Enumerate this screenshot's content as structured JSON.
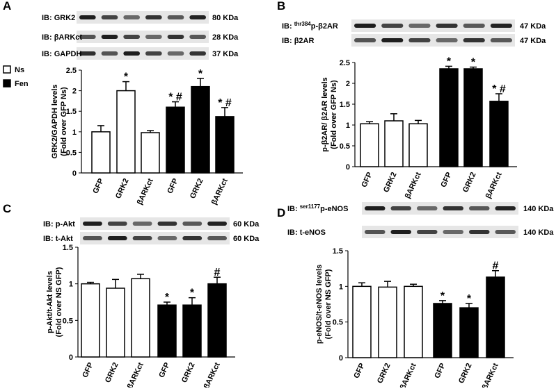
{
  "chart_data": [
    {
      "type": "bar",
      "panel": "A",
      "blots": [
        {
          "label": "IB: GRK2",
          "size": "80 KDa"
        },
        {
          "label": "IB: βARKct",
          "size": "28 KDa"
        },
        {
          "label": "IB: GAPDH",
          "size": "37 KDa"
        }
      ],
      "ylabel": [
        "GRK2/GAPDH levels",
        "(Fold over GFP Ns)"
      ],
      "categories": [
        "GFP",
        "GRK2",
        "βARKct",
        "GFP",
        "GRK2",
        "βARKct"
      ],
      "values": [
        1.0,
        2.0,
        0.98,
        1.6,
        2.1,
        1.37
      ],
      "errors": [
        0.15,
        0.22,
        0.05,
        0.13,
        0.2,
        0.22
      ],
      "annotations": [
        null,
        "*",
        null,
        "* #",
        "*",
        "* #"
      ],
      "bar_colors": [
        "#ffffff",
        "#ffffff",
        "#ffffff",
        "#000000",
        "#000000",
        "#000000"
      ],
      "legend": [
        {
          "name": "Ns",
          "color": "#ffffff"
        },
        {
          "name": "Fen",
          "color": "#000000"
        }
      ],
      "ylim": [
        0,
        2.5
      ],
      "yticks": [
        0,
        0.5,
        1,
        1.5,
        2,
        2.5
      ]
    },
    {
      "type": "bar",
      "panel": "B",
      "blots": [
        {
          "label": {
            "pre": "IB: ",
            "sup": "thr384",
            "post": "p-β2AR"
          },
          "size": "47 KDa"
        },
        {
          "label": "IB: β2AR",
          "size": "47 KDa"
        }
      ],
      "ylabel": [
        "p-β2AR/ β2AR levels",
        "(Fold over GFP Ns)"
      ],
      "categories": [
        "GFP",
        "GRK2",
        "βARKct",
        "GFP",
        "GRK2",
        "βARKct"
      ],
      "values": [
        1.03,
        1.1,
        1.03,
        2.35,
        2.35,
        1.57
      ],
      "errors": [
        0.05,
        0.17,
        0.08,
        0.06,
        0.04,
        0.18
      ],
      "annotations": [
        null,
        null,
        null,
        "*",
        "*",
        "* #"
      ],
      "bar_colors": [
        "#ffffff",
        "#ffffff",
        "#ffffff",
        "#000000",
        "#000000",
        "#000000"
      ],
      "ylim": [
        0,
        2.5
      ],
      "yticks": [
        0,
        0.5,
        1,
        1.5,
        2,
        2.5
      ]
    },
    {
      "type": "bar",
      "panel": "C",
      "blots": [
        {
          "label": "IB: p-Akt",
          "size": "60 KDa"
        },
        {
          "label": "IB: t-Akt",
          "size": "60 KDa"
        }
      ],
      "ylabel": [
        "p-Akt/t-Akt levels",
        "(Fold over NS GFP)"
      ],
      "categories": [
        "GFP",
        "GRK2",
        "βARKct",
        "GFP",
        "GRK2",
        "βARKct"
      ],
      "values": [
        1.0,
        0.94,
        1.07,
        0.71,
        0.71,
        1.0
      ],
      "errors": [
        0.02,
        0.12,
        0.06,
        0.04,
        0.1,
        0.09
      ],
      "annotations": [
        null,
        null,
        null,
        "*",
        "*",
        "#"
      ],
      "bar_colors": [
        "#ffffff",
        "#ffffff",
        "#ffffff",
        "#000000",
        "#000000",
        "#000000"
      ],
      "ylim": [
        0,
        1.5
      ],
      "yticks": [
        0,
        0.5,
        1,
        1.5
      ]
    },
    {
      "type": "bar",
      "panel": "D",
      "blots": [
        {
          "label": {
            "pre": "IB: ",
            "sup": "ser1177",
            "post": "p-eNOS"
          },
          "size": "140 KDa"
        },
        {
          "label": "IB: t-eNOS",
          "size": "140 KDa"
        }
      ],
      "ylabel": [
        "p-eNOS/t-eNOS levels",
        "(Fold over NS GFP)"
      ],
      "categories": [
        "GFP",
        "GRK2",
        "βARKct",
        "GFP",
        "GRK2",
        "βARKct"
      ],
      "values": [
        1.0,
        0.99,
        1.0,
        0.76,
        0.7,
        1.13
      ],
      "errors": [
        0.05,
        0.08,
        0.03,
        0.04,
        0.06,
        0.09
      ],
      "annotations": [
        null,
        null,
        null,
        "*",
        "*",
        "#"
      ],
      "bar_colors": [
        "#ffffff",
        "#ffffff",
        "#ffffff",
        "#000000",
        "#000000",
        "#000000"
      ],
      "ylim": [
        0,
        1.5
      ],
      "yticks": [
        0,
        0.5,
        1,
        1.5
      ]
    }
  ]
}
